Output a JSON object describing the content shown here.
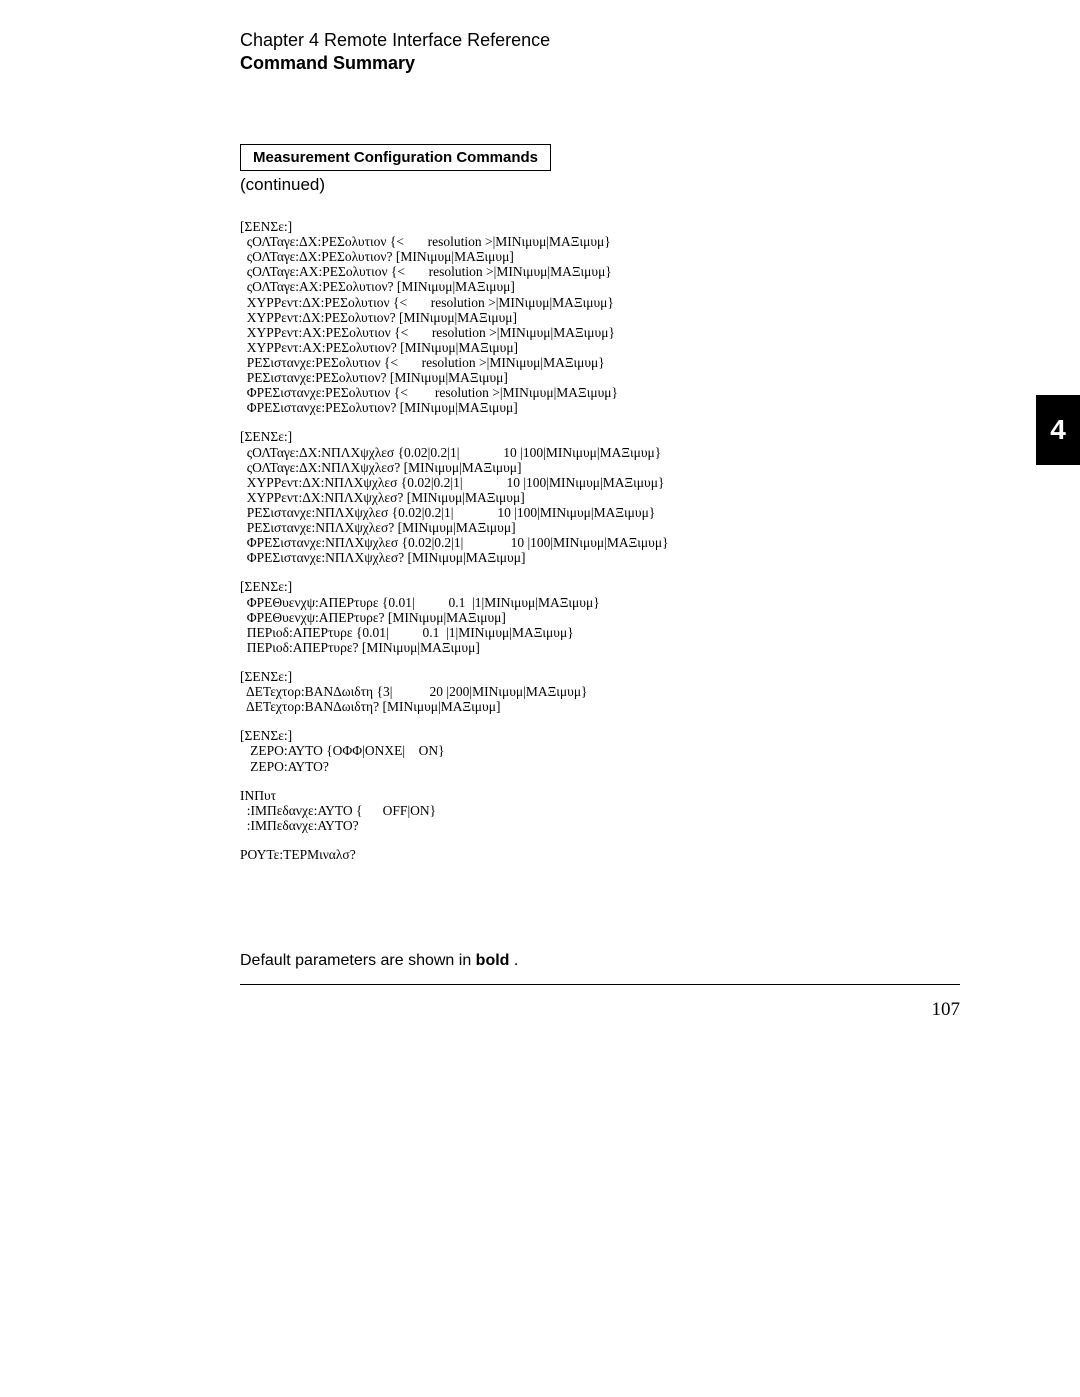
{
  "header": {
    "chapter": "Chapter 4  Remote Interface Reference",
    "section": "Command Summary"
  },
  "box": {
    "title": "Measurement Configuration Commands"
  },
  "continued": "(continued)",
  "sideTab": "4",
  "blocks": [
    "[ΣΕΝΣε:]\n  ςΟΛΤαγε:ΔΧ:ΡΕΣολυτιον {<       resolution >|ΜΙΝιμυμ|ΜΑΞιμυμ}\n  ςΟΛΤαγε:ΔΧ:ΡΕΣολυτιον? [ΜΙΝιμυμ|ΜΑΞιμυμ]\n  ςΟΛΤαγε:ΑΧ:ΡΕΣολυτιον {<       resolution >|ΜΙΝιμυμ|ΜΑΞιμυμ}\n  ςΟΛΤαγε:ΑΧ:ΡΕΣολυτιον? [ΜΙΝιμυμ|ΜΑΞιμυμ]\n  ΧΥΡΡεντ:ΔΧ:ΡΕΣολυτιον {<       resolution >|ΜΙΝιμυμ|ΜΑΞιμυμ}\n  ΧΥΡΡεντ:ΔΧ:ΡΕΣολυτιον? [ΜΙΝιμυμ|ΜΑΞιμυμ]\n  ΧΥΡΡεντ:ΑΧ:ΡΕΣολυτιον {<       resolution >|ΜΙΝιμυμ|ΜΑΞιμυμ}\n  ΧΥΡΡεντ:ΑΧ:ΡΕΣολυτιον? [ΜΙΝιμυμ|ΜΑΞιμυμ]\n  ΡΕΣιστανχε:ΡΕΣολυτιον {<       resolution >|ΜΙΝιμυμ|ΜΑΞιμυμ}\n  ΡΕΣιστανχε:ΡΕΣολυτιον? [ΜΙΝιμυμ|ΜΑΞιμυμ]\n  ΦΡΕΣιστανχε:ΡΕΣολυτιον {<        resolution >|ΜΙΝιμυμ|ΜΑΞιμυμ}\n  ΦΡΕΣιστανχε:ΡΕΣολυτιον? [ΜΙΝιμυμ|ΜΑΞιμυμ]",
    "[ΣΕΝΣε:]\n  ςΟΛΤαγε:ΔΧ:ΝΠΛΧψχλεσ {0.02|0.2|1|             10 |100|ΜΙΝιμυμ|ΜΑΞιμυμ}\n  ςΟΛΤαγε:ΔΧ:ΝΠΛΧψχλεσ? [ΜΙΝιμυμ|ΜΑΞιμυμ]\n  ΧΥΡΡεντ:ΔΧ:ΝΠΛΧψχλεσ {0.02|0.2|1|             10 |100|ΜΙΝιμυμ|ΜΑΞιμυμ}\n  ΧΥΡΡεντ:ΔΧ:ΝΠΛΧψχλεσ? [ΜΙΝιμυμ|ΜΑΞιμυμ]\n  ΡΕΣιστανχε:ΝΠΛΧψχλεσ {0.02|0.2|1|             10 |100|ΜΙΝιμυμ|ΜΑΞιμυμ}\n  ΡΕΣιστανχε:ΝΠΛΧψχλεσ? [ΜΙΝιμυμ|ΜΑΞιμυμ]\n  ΦΡΕΣιστανχε:ΝΠΛΧψχλεσ {0.02|0.2|1|              10 |100|ΜΙΝιμυμ|ΜΑΞιμυμ}\n  ΦΡΕΣιστανχε:ΝΠΛΧψχλεσ? [ΜΙΝιμυμ|ΜΑΞιμυμ]",
    "[ΣΕΝΣε:]\n  ΦΡΕΘυενχψ:ΑΠΕΡτυρε {0.01|          0.1  |1|ΜΙΝιμυμ|ΜΑΞιμυμ}\n  ΦΡΕΘυενχψ:ΑΠΕΡτυρε? [ΜΙΝιμυμ|ΜΑΞιμυμ]\n  ΠΕΡιοδ:ΑΠΕΡτυρε {0.01|          0.1  |1|ΜΙΝιμυμ|ΜΑΞιμυμ}\n  ΠΕΡιοδ:ΑΠΕΡτυρε? [ΜΙΝιμυμ|ΜΑΞιμυμ]",
    "[ΣΕΝΣε:]\n  ΔΕΤεχτορ:ΒΑΝΔωιδτη {3|           20 |200|ΜΙΝιμυμ|ΜΑΞιμυμ}\n  ΔΕΤεχτορ:ΒΑΝΔωιδτη? [ΜΙΝιμυμ|ΜΑΞιμυμ]",
    "[ΣΕΝΣε:]\n   ΖΕΡΟ:ΑΥΤΟ {ΟΦΦ|ΟΝΧΕ|    ON}\n   ΖΕΡΟ:ΑΥΤΟ?",
    "ΙΝΠυτ\n  :ΙΜΠεδανχε:ΑΥΤΟ {      OFF|ΟΝ}\n  :ΙΜΠεδανχε:ΑΥΤΟ?",
    "ΡΟΥΤε:ΤΕΡΜιναλσ?"
  ],
  "footer": {
    "note_prefix": "Default parameters are shown in   ",
    "note_bold": "bold",
    "note_suffix": "  .",
    "pageNumber": "107"
  }
}
